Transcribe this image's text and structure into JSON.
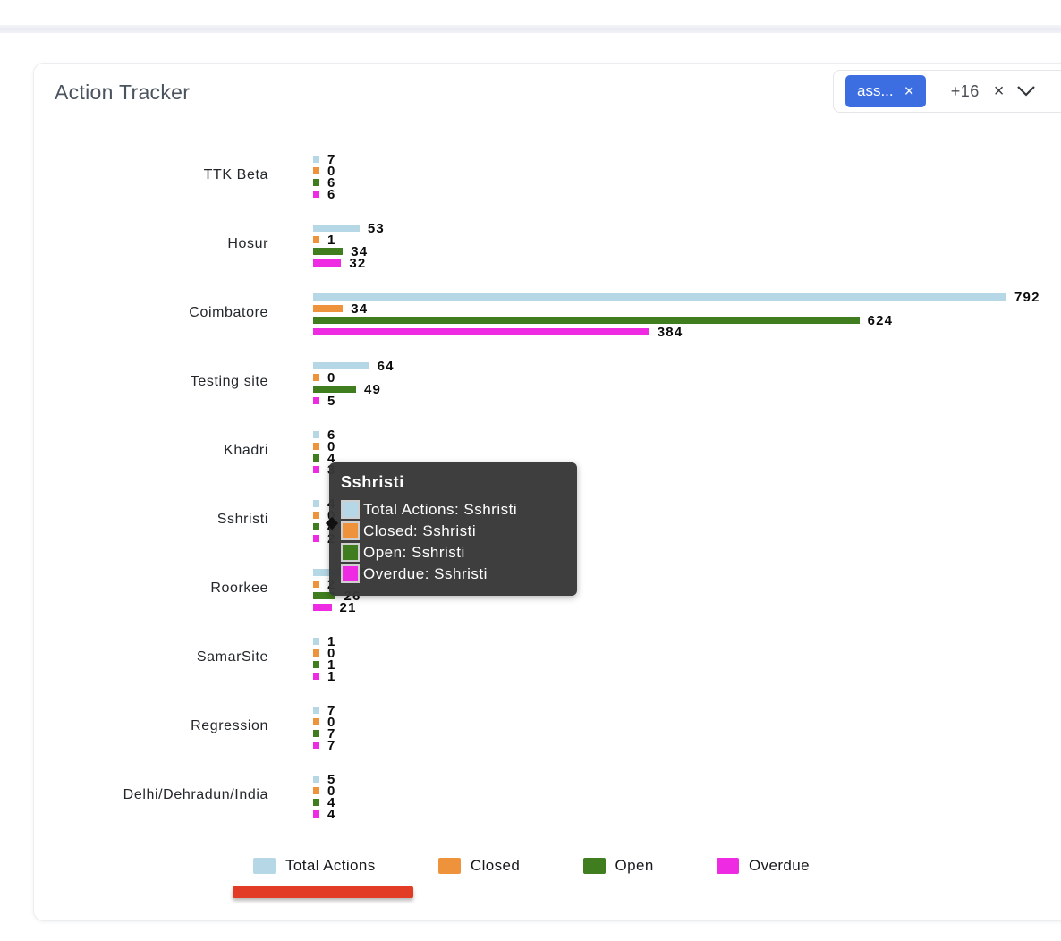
{
  "header": {
    "title": "Action Tracker"
  },
  "filter": {
    "chip": {
      "label": "ass...",
      "close_icon": "×"
    },
    "more_count": "+16",
    "clear_icon": "×",
    "accent_color": "#3d6ee1"
  },
  "chart_data": {
    "type": "bar",
    "orientation": "horizontal",
    "title": "Action Tracker",
    "categories": [
      "TTK Beta",
      "Hosur",
      "Coimbatore",
      "Testing site",
      "Khadri",
      "Sshristi",
      "Roorkee",
      "SamarSite",
      "Regression",
      "Delhi/Dehradun/India"
    ],
    "series": [
      {
        "name": "Total Actions",
        "color": "#b5d7e6",
        "values": [
          7,
          53,
          792,
          64,
          6,
          4,
          35,
          1,
          7,
          5
        ]
      },
      {
        "name": "Closed",
        "color": "#ef923c",
        "values": [
          0,
          1,
          34,
          0,
          0,
          0,
          2,
          0,
          0,
          0
        ]
      },
      {
        "name": "Open",
        "color": "#3f7d1e",
        "values": [
          6,
          34,
          624,
          49,
          4,
          4,
          26,
          1,
          7,
          4
        ]
      },
      {
        "name": "Overdue",
        "color": "#ee2be2",
        "values": [
          6,
          32,
          384,
          5,
          3,
          2,
          21,
          1,
          7,
          4
        ]
      }
    ],
    "xlim": [
      0,
      800
    ],
    "grid": false,
    "legend_position": "bottom",
    "value_labels": true
  },
  "tooltip": {
    "title": "Sshristi",
    "rows": [
      {
        "color": "#b5d7e6",
        "label": "Total Actions: Sshristi"
      },
      {
        "color": "#ef923c",
        "label": "Closed: Sshristi"
      },
      {
        "color": "#3f7d1e",
        "label": "Open: Sshristi"
      },
      {
        "color": "#ee2be2",
        "label": "Overdue: Sshristi"
      }
    ]
  },
  "legend": {
    "items": [
      {
        "label": "Total Actions",
        "color": "#b5d7e6"
      },
      {
        "label": "Closed",
        "color": "#ef923c"
      },
      {
        "label": "Open",
        "color": "#3f7d1e"
      },
      {
        "label": "Overdue",
        "color": "#ee2be2"
      }
    ]
  },
  "scrollbar": {
    "color": "#e23c27"
  }
}
